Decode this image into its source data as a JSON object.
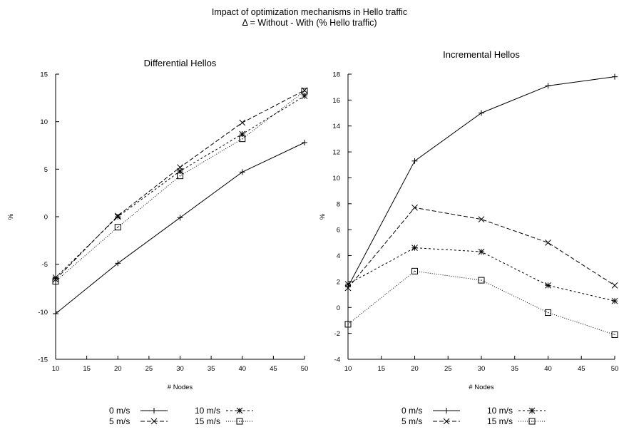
{
  "figure": {
    "title_line1": "Impact of optimization mechanisms in Hello traffic",
    "title_line2": "Δ = Without - With (% Hello traffic)"
  },
  "chart_data": [
    {
      "type": "line",
      "title": "Differential Hellos",
      "xlabel": "# Nodes",
      "ylabel": "%",
      "x": [
        10,
        20,
        30,
        40,
        50
      ],
      "xticks": [
        10,
        15,
        20,
        25,
        30,
        35,
        40,
        45,
        50
      ],
      "xlim": [
        10,
        50
      ],
      "yticks": [
        -15,
        -10,
        -5,
        0,
        5,
        10,
        15
      ],
      "ylim": [
        -15,
        15
      ],
      "grid": false,
      "legend_position": "bottom",
      "series": [
        {
          "name": "0 m/s",
          "values": [
            -10.2,
            -4.9,
            -0.1,
            4.7,
            7.8
          ],
          "marker": "plus",
          "dash": "solid"
        },
        {
          "name": "5 m/s",
          "values": [
            -6.6,
            0.1,
            5.2,
            9.9,
            13.3
          ],
          "marker": "x",
          "dash": "dashed"
        },
        {
          "name": "10 m/s",
          "values": [
            -6.4,
            0.0,
            4.8,
            8.7,
            12.7
          ],
          "marker": "star",
          "dash": "shortdash"
        },
        {
          "name": "15 m/s",
          "values": [
            -6.8,
            -1.1,
            4.3,
            8.2,
            13.2
          ],
          "marker": "square",
          "dash": "dotted"
        }
      ]
    },
    {
      "type": "line",
      "title": "Incremental Hellos",
      "xlabel": "# Nodes",
      "ylabel": "%",
      "x": [
        10,
        20,
        30,
        40,
        50
      ],
      "xticks": [
        10,
        15,
        20,
        25,
        30,
        35,
        40,
        45,
        50
      ],
      "xlim": [
        10,
        50
      ],
      "yticks": [
        -4,
        -2,
        0,
        2,
        4,
        6,
        8,
        10,
        12,
        14,
        16,
        18
      ],
      "ylim": [
        -4,
        18
      ],
      "grid": false,
      "legend_position": "bottom",
      "series": [
        {
          "name": "0 m/s",
          "values": [
            1.6,
            11.3,
            15.0,
            17.1,
            17.8
          ],
          "marker": "plus",
          "dash": "solid"
        },
        {
          "name": "5 m/s",
          "values": [
            1.5,
            7.7,
            6.8,
            5.0,
            1.7
          ],
          "marker": "x",
          "dash": "dashed"
        },
        {
          "name": "10 m/s",
          "values": [
            1.8,
            4.6,
            4.3,
            1.7,
            0.5
          ],
          "marker": "star",
          "dash": "shortdash"
        },
        {
          "name": "15 m/s",
          "values": [
            -1.3,
            2.8,
            2.1,
            -0.4,
            -2.1
          ],
          "marker": "square",
          "dash": "dotted"
        }
      ]
    }
  ]
}
